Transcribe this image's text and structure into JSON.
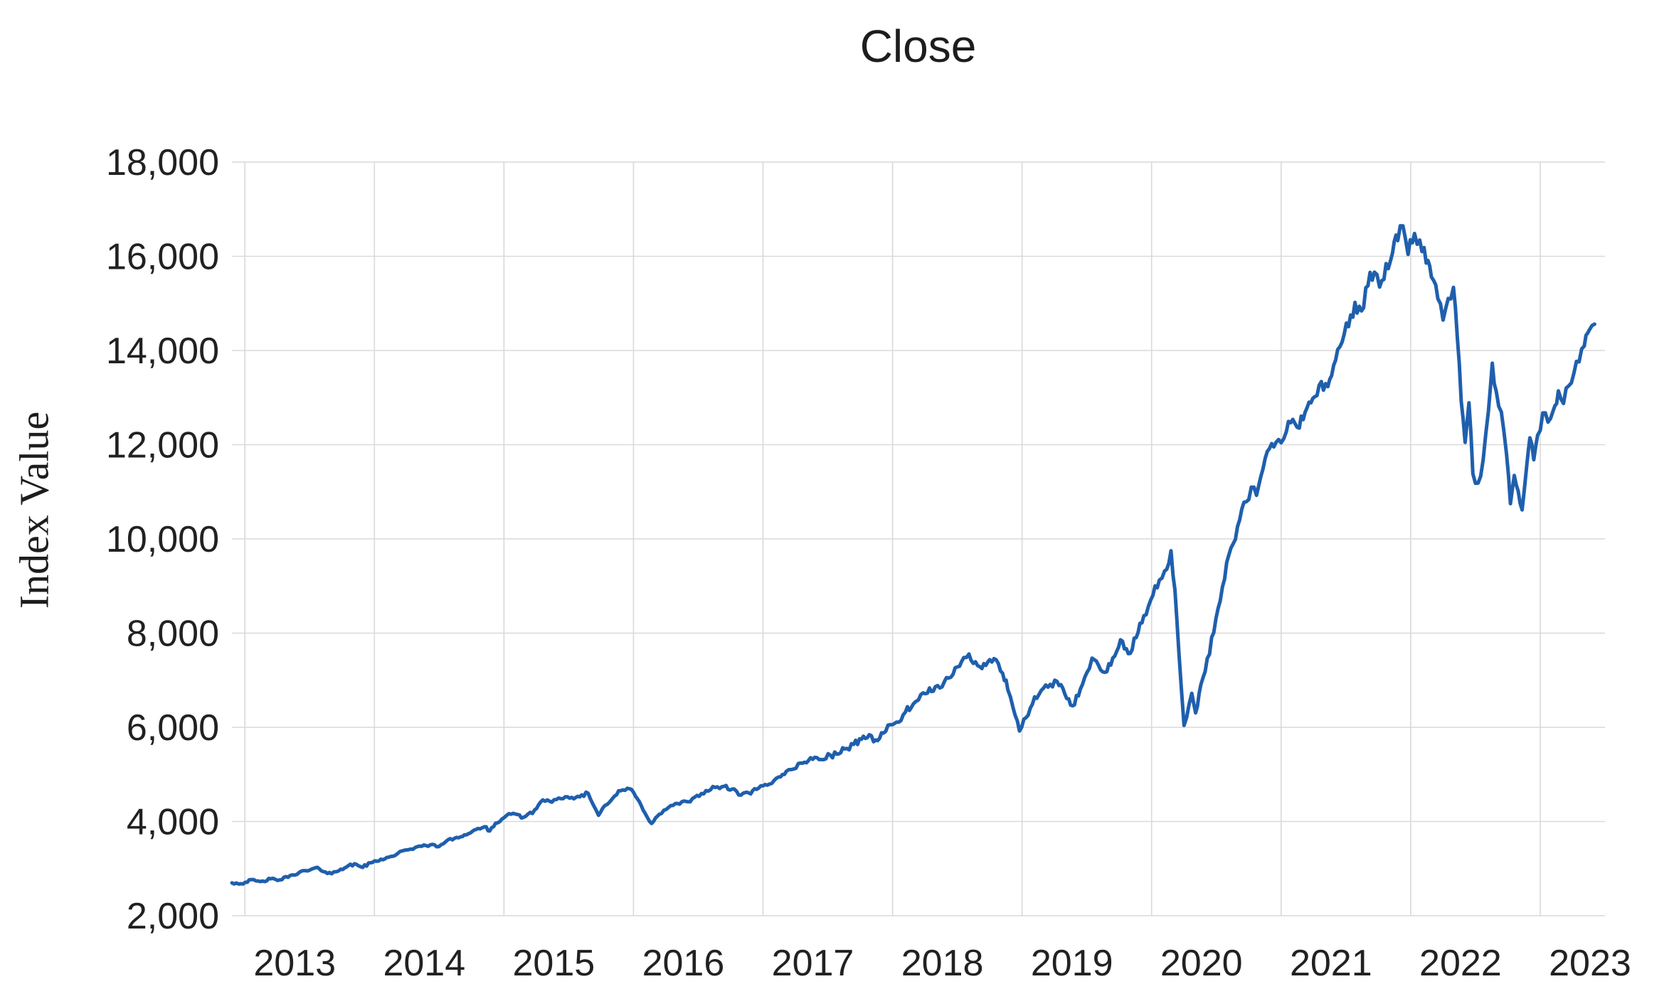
{
  "chart_data": {
    "type": "line",
    "title": "Close",
    "xlabel": "",
    "ylabel": "Index Value",
    "legend_position": "none",
    "grid": true,
    "grid_color": "#d9d9d9",
    "background_color": "#ffffff",
    "line_color": "#1f5fad",
    "text_color": "#212121",
    "ylim": [
      2000,
      18000
    ],
    "y_tick_step": 2000,
    "y_tick_labels": [
      "2,000",
      "4,000",
      "6,000",
      "8,000",
      "10,000",
      "12,000",
      "14,000",
      "16,000",
      "18,000"
    ],
    "x_tick_labels": [
      "2013",
      "2014",
      "2015",
      "2016",
      "2017",
      "2018",
      "2019",
      "2020",
      "2021",
      "2022",
      "2023"
    ],
    "x_tick_years": [
      2013,
      2014,
      2015,
      2016,
      2017,
      2018,
      2019,
      2020,
      2021,
      2022,
      2023
    ],
    "xlim_years": [
      2012.9,
      2023.5
    ],
    "series": [
      {
        "name": "Close",
        "points": [
          [
            2012.9,
            2700
          ],
          [
            2012.97,
            2680
          ],
          [
            2013.05,
            2760
          ],
          [
            2013.12,
            2720
          ],
          [
            2013.2,
            2780
          ],
          [
            2013.27,
            2760
          ],
          [
            2013.35,
            2850
          ],
          [
            2013.42,
            2920
          ],
          [
            2013.5,
            2966
          ],
          [
            2013.56,
            3020
          ],
          [
            2013.62,
            2930
          ],
          [
            2013.67,
            2890
          ],
          [
            2013.74,
            2990
          ],
          [
            2013.8,
            3060
          ],
          [
            2013.86,
            3090
          ],
          [
            2013.91,
            3030
          ],
          [
            2013.97,
            3120
          ],
          [
            2014.05,
            3200
          ],
          [
            2014.11,
            3240
          ],
          [
            2014.18,
            3320
          ],
          [
            2014.24,
            3390
          ],
          [
            2014.28,
            3420
          ],
          [
            2014.35,
            3470
          ],
          [
            2014.43,
            3510
          ],
          [
            2014.48,
            3460
          ],
          [
            2014.55,
            3570
          ],
          [
            2014.62,
            3650
          ],
          [
            2014.68,
            3690
          ],
          [
            2014.74,
            3760
          ],
          [
            2014.8,
            3850
          ],
          [
            2014.85,
            3890
          ],
          [
            2014.89,
            3790
          ],
          [
            2014.95,
            3980
          ],
          [
            2015.02,
            4120
          ],
          [
            2015.09,
            4160
          ],
          [
            2015.15,
            4090
          ],
          [
            2015.22,
            4180
          ],
          [
            2015.3,
            4460
          ],
          [
            2015.37,
            4420
          ],
          [
            2015.44,
            4480
          ],
          [
            2015.54,
            4490
          ],
          [
            2015.6,
            4560
          ],
          [
            2015.65,
            4600
          ],
          [
            2015.69,
            4350
          ],
          [
            2015.73,
            4140
          ],
          [
            2015.78,
            4350
          ],
          [
            2015.84,
            4500
          ],
          [
            2015.9,
            4650
          ],
          [
            2015.97,
            4700
          ],
          [
            2016.03,
            4480
          ],
          [
            2016.09,
            4180
          ],
          [
            2016.14,
            3960
          ],
          [
            2016.2,
            4150
          ],
          [
            2016.27,
            4300
          ],
          [
            2016.34,
            4380
          ],
          [
            2016.42,
            4410
          ],
          [
            2016.49,
            4550
          ],
          [
            2016.56,
            4650
          ],
          [
            2016.63,
            4720
          ],
          [
            2016.7,
            4745
          ],
          [
            2016.76,
            4680
          ],
          [
            2016.83,
            4565
          ],
          [
            2016.89,
            4600
          ],
          [
            2016.95,
            4680
          ],
          [
            2017.0,
            4750
          ],
          [
            2017.05,
            4790
          ],
          [
            2017.12,
            4950
          ],
          [
            2017.18,
            5060
          ],
          [
            2017.22,
            5110
          ],
          [
            2017.29,
            5230
          ],
          [
            2017.35,
            5300
          ],
          [
            2017.4,
            5365
          ],
          [
            2017.45,
            5310
          ],
          [
            2017.52,
            5400
          ],
          [
            2017.57,
            5440
          ],
          [
            2017.63,
            5530
          ],
          [
            2017.7,
            5640
          ],
          [
            2017.76,
            5760
          ],
          [
            2017.82,
            5830
          ],
          [
            2017.87,
            5720
          ],
          [
            2017.93,
            5890
          ],
          [
            2018.0,
            6060
          ],
          [
            2018.03,
            6100
          ],
          [
            2018.1,
            6320
          ],
          [
            2018.16,
            6480
          ],
          [
            2018.2,
            6590
          ],
          [
            2018.27,
            6720
          ],
          [
            2018.33,
            6850
          ],
          [
            2018.4,
            6960
          ],
          [
            2018.45,
            7050
          ],
          [
            2018.5,
            7300
          ],
          [
            2018.55,
            7480
          ],
          [
            2018.59,
            7570
          ],
          [
            2018.64,
            7380
          ],
          [
            2018.69,
            7250
          ],
          [
            2018.75,
            7420
          ],
          [
            2018.8,
            7450
          ],
          [
            2018.85,
            7150
          ],
          [
            2018.89,
            6800
          ],
          [
            2018.93,
            6400
          ],
          [
            2018.98,
            5930
          ],
          [
            2019.03,
            6200
          ],
          [
            2019.08,
            6500
          ],
          [
            2019.13,
            6710
          ],
          [
            2019.2,
            6850
          ],
          [
            2019.27,
            6980
          ],
          [
            2019.33,
            6700
          ],
          [
            2019.39,
            6470
          ],
          [
            2019.45,
            6800
          ],
          [
            2019.5,
            7150
          ],
          [
            2019.54,
            7490
          ],
          [
            2019.59,
            7300
          ],
          [
            2019.64,
            7145
          ],
          [
            2019.7,
            7450
          ],
          [
            2019.76,
            7840
          ],
          [
            2019.82,
            7570
          ],
          [
            2019.88,
            7900
          ],
          [
            2019.94,
            8350
          ],
          [
            2020.01,
            8820
          ],
          [
            2020.06,
            9100
          ],
          [
            2020.1,
            9310
          ],
          [
            2020.15,
            9730
          ],
          [
            2020.18,
            8900
          ],
          [
            2020.21,
            7600
          ],
          [
            2020.25,
            6050
          ],
          [
            2020.29,
            6500
          ],
          [
            2020.31,
            6710
          ],
          [
            2020.34,
            6320
          ],
          [
            2020.38,
            6900
          ],
          [
            2020.43,
            7450
          ],
          [
            2020.48,
            8000
          ],
          [
            2020.53,
            8700
          ],
          [
            2020.58,
            9500
          ],
          [
            2020.63,
            9900
          ],
          [
            2020.68,
            10400
          ],
          [
            2020.73,
            10800
          ],
          [
            2020.77,
            11100
          ],
          [
            2020.81,
            10900
          ],
          [
            2020.86,
            11500
          ],
          [
            2020.91,
            11900
          ],
          [
            2020.96,
            12050
          ],
          [
            2021.0,
            12050
          ],
          [
            2021.04,
            12300
          ],
          [
            2021.09,
            12550
          ],
          [
            2021.14,
            12350
          ],
          [
            2021.2,
            12800
          ],
          [
            2021.26,
            13050
          ],
          [
            2021.31,
            13300
          ],
          [
            2021.36,
            13200
          ],
          [
            2021.42,
            13800
          ],
          [
            2021.47,
            14200
          ],
          [
            2021.52,
            14550
          ],
          [
            2021.57,
            15000
          ],
          [
            2021.62,
            14800
          ],
          [
            2021.67,
            15400
          ],
          [
            2021.72,
            15700
          ],
          [
            2021.76,
            15350
          ],
          [
            2021.81,
            15800
          ],
          [
            2021.86,
            16050
          ],
          [
            2021.9,
            16350
          ],
          [
            2021.94,
            16640
          ],
          [
            2021.98,
            16000
          ],
          [
            2022.03,
            16480
          ],
          [
            2022.07,
            16350
          ],
          [
            2022.12,
            15900
          ],
          [
            2022.16,
            15600
          ],
          [
            2022.21,
            15100
          ],
          [
            2022.25,
            14650
          ],
          [
            2022.29,
            15100
          ],
          [
            2022.33,
            15300
          ],
          [
            2022.36,
            14300
          ],
          [
            2022.39,
            12900
          ],
          [
            2022.42,
            12050
          ],
          [
            2022.45,
            12900
          ],
          [
            2022.48,
            11400
          ],
          [
            2022.52,
            11150
          ],
          [
            2022.56,
            11700
          ],
          [
            2022.6,
            12700
          ],
          [
            2022.63,
            13700
          ],
          [
            2022.66,
            13150
          ],
          [
            2022.7,
            12700
          ],
          [
            2022.74,
            11800
          ],
          [
            2022.77,
            10750
          ],
          [
            2022.8,
            11350
          ],
          [
            2022.83,
            11000
          ],
          [
            2022.86,
            10600
          ],
          [
            2022.89,
            11400
          ],
          [
            2022.92,
            12150
          ],
          [
            2022.95,
            11650
          ],
          [
            2022.98,
            12200
          ],
          [
            2023.02,
            12700
          ],
          [
            2023.06,
            12500
          ],
          [
            2023.1,
            12750
          ],
          [
            2023.14,
            13150
          ],
          [
            2023.18,
            12900
          ],
          [
            2023.22,
            13250
          ],
          [
            2023.26,
            13500
          ],
          [
            2023.3,
            13750
          ],
          [
            2023.34,
            14100
          ],
          [
            2023.38,
            14400
          ],
          [
            2023.42,
            14560
          ]
        ]
      }
    ]
  }
}
